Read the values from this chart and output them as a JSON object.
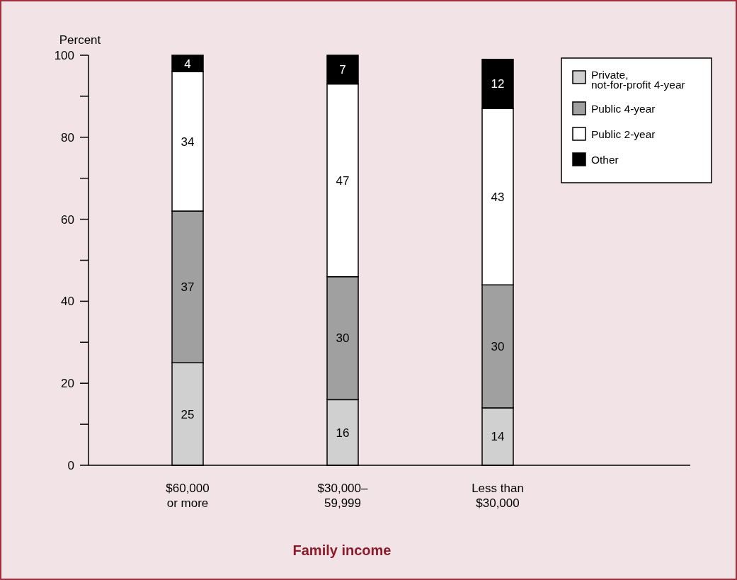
{
  "chart_data": {
    "type": "bar",
    "stacked": true,
    "xlabel": "Family income",
    "ylabel": "Percent",
    "categories": [
      "$60,000 or more",
      "$30,000–59,999",
      "Less than $30,000"
    ],
    "series": [
      {
        "name": "Private, not-for-profit 4-year",
        "color": "#d0d0d0",
        "values": [
          25,
          16,
          14
        ]
      },
      {
        "name": "Public 4-year",
        "color": "#a0a0a0",
        "values": [
          37,
          30,
          30
        ]
      },
      {
        "name": "Public 2-year",
        "color": "#ffffff",
        "values": [
          34,
          47,
          43
        ]
      },
      {
        "name": "Other",
        "color": "#000000",
        "values": [
          4,
          7,
          12
        ]
      }
    ],
    "ylim": [
      0,
      100
    ],
    "yticks": [
      0,
      {
        "value": 10,
        "label": null
      },
      20,
      {
        "value": 30,
        "label": null
      },
      40,
      {
        "value": 50,
        "label": null
      },
      60,
      {
        "value": 70,
        "label": null
      },
      80,
      {
        "value": 90,
        "label": null
      },
      100
    ],
    "data_labels": true,
    "legend": "top right",
    "grid": false
  }
}
